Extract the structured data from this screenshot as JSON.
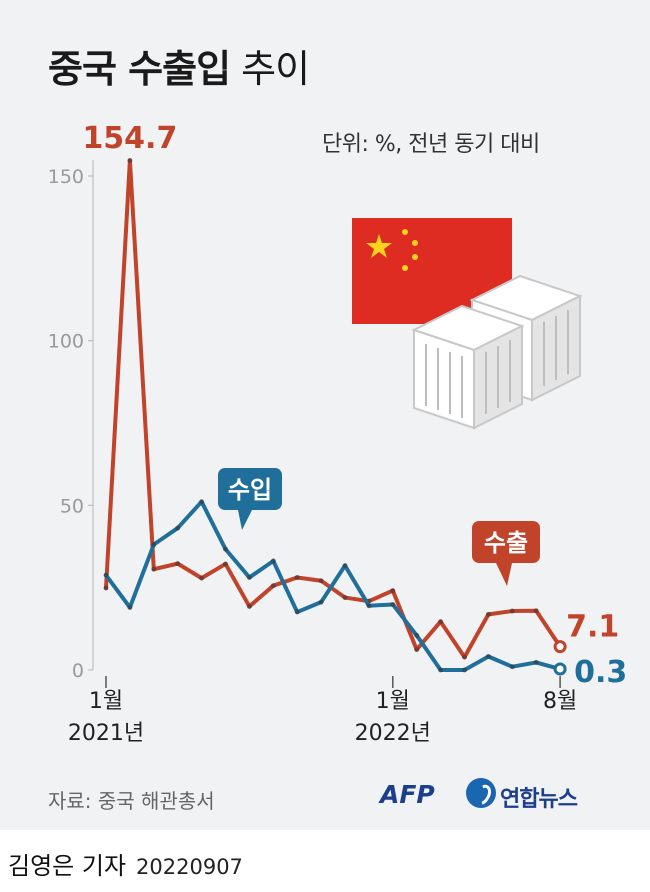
{
  "title_bold": "중국 수출입",
  "title_light": "추이",
  "unit_note": "단위: %, 전년 동기 대비",
  "source": "자료: 중국 해관총서",
  "brand_afp": "AFP",
  "brand_yna": "연합뉴스",
  "byline": {
    "name": "김영은 기자",
    "date": "20220907"
  },
  "flag_icon": "china-flag-icon",
  "crate_icon": "cargo-crates-icon",
  "colors": {
    "export": "#c0432a",
    "import": "#1f6f9a",
    "background": "#f1f2f4",
    "axis_text": "#9a9a9a"
  },
  "chart_data": {
    "type": "line",
    "ylim": [
      0,
      160
    ],
    "yticks": [
      0,
      50,
      100,
      150
    ],
    "x": [
      "2021-01",
      "2021-02",
      "2021-03",
      "2021-04",
      "2021-05",
      "2021-06",
      "2021-07",
      "2021-08",
      "2021-09",
      "2021-10",
      "2021-11",
      "2021-12",
      "2022-01",
      "2022-02",
      "2022-03",
      "2022-04",
      "2022-05",
      "2022-06",
      "2022-07",
      "2022-08"
    ],
    "x_tick_labels": [
      {
        "x": "2021-01",
        "line1": "1월",
        "line2": "2021년"
      },
      {
        "x": "2022-01",
        "line1": "1월",
        "line2": "2022년"
      },
      {
        "x": "2022-08",
        "line1": "8월",
        "line2": ""
      }
    ],
    "series": [
      {
        "name": "수출",
        "color": "#c0432a",
        "values": [
          24.9,
          154.7,
          30.6,
          32.3,
          27.9,
          32.2,
          19.3,
          25.6,
          28.1,
          27.1,
          22.0,
          20.9,
          24.1,
          6.2,
          14.7,
          3.9,
          16.9,
          17.9,
          18.0,
          7.1
        ],
        "end_label": "7.1",
        "peak_label": "154.7"
      },
      {
        "name": "수입",
        "color": "#1f6f9a",
        "values": [
          28.8,
          19.0,
          38.1,
          43.1,
          51.1,
          36.7,
          28.1,
          33.1,
          17.6,
          20.6,
          31.7,
          19.5,
          19.9,
          10.5,
          0.0,
          0.0,
          4.1,
          1.0,
          2.3,
          0.3
        ],
        "end_label": "0.3"
      }
    ]
  }
}
